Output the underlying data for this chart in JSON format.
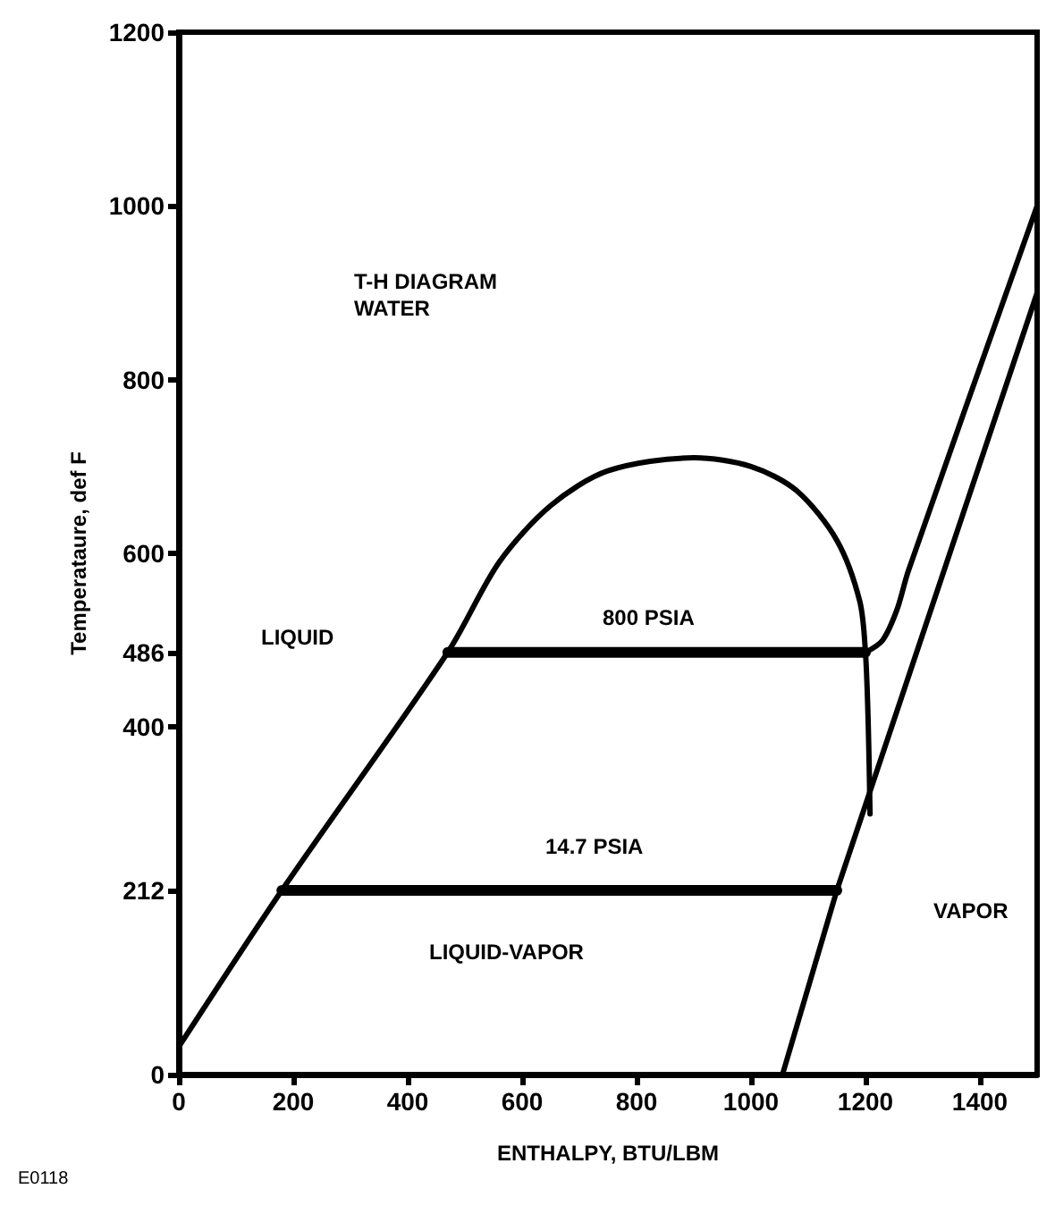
{
  "chart_data": {
    "type": "line",
    "xlabel": "ENTHALPY, BTU/LBM",
    "ylabel": "Temperataure, def F",
    "xlim": [
      0,
      1500
    ],
    "xticks": [
      0,
      200,
      400,
      600,
      800,
      1000,
      1200,
      1400
    ],
    "ylim": [
      0,
      1200
    ],
    "yticks": [
      0,
      212,
      400,
      486,
      600,
      800,
      1000,
      1200
    ],
    "grid": false,
    "marker": "none",
    "series": [
      {
        "color": "#000000",
        "x": [
          0,
          180,
          470,
          560,
          650,
          750,
          900,
          1000,
          1080,
          1150,
          1190,
          1200,
          1205,
          1208
        ],
        "values": [
          32,
          212,
          486,
          590,
          655,
          695,
          710,
          700,
          672,
          615,
          545,
          486,
          400,
          300
        ]
      },
      {
        "color": "#000000",
        "x": [
          470,
          1200
        ],
        "values": [
          486,
          486
        ]
      },
      {
        "color": "#000000",
        "x": [
          180,
          1150
        ],
        "values": [
          212,
          212
        ]
      },
      {
        "color": "#000000",
        "x": [
          1200,
          1230,
          1255,
          1275,
          1500
        ],
        "values": [
          486,
          500,
          535,
          580,
          1000
        ]
      },
      {
        "color": "#000000",
        "x": [
          1055,
          1150,
          1500
        ],
        "values": [
          0,
          212,
          900
        ]
      }
    ],
    "annotations": [
      "T-H DIAGRAM\nWATER",
      "LIQUID",
      "800 PSIA",
      "14.7 PSIA",
      "LIQUID-VAPOR",
      "VAPOR",
      "E0118"
    ]
  }
}
